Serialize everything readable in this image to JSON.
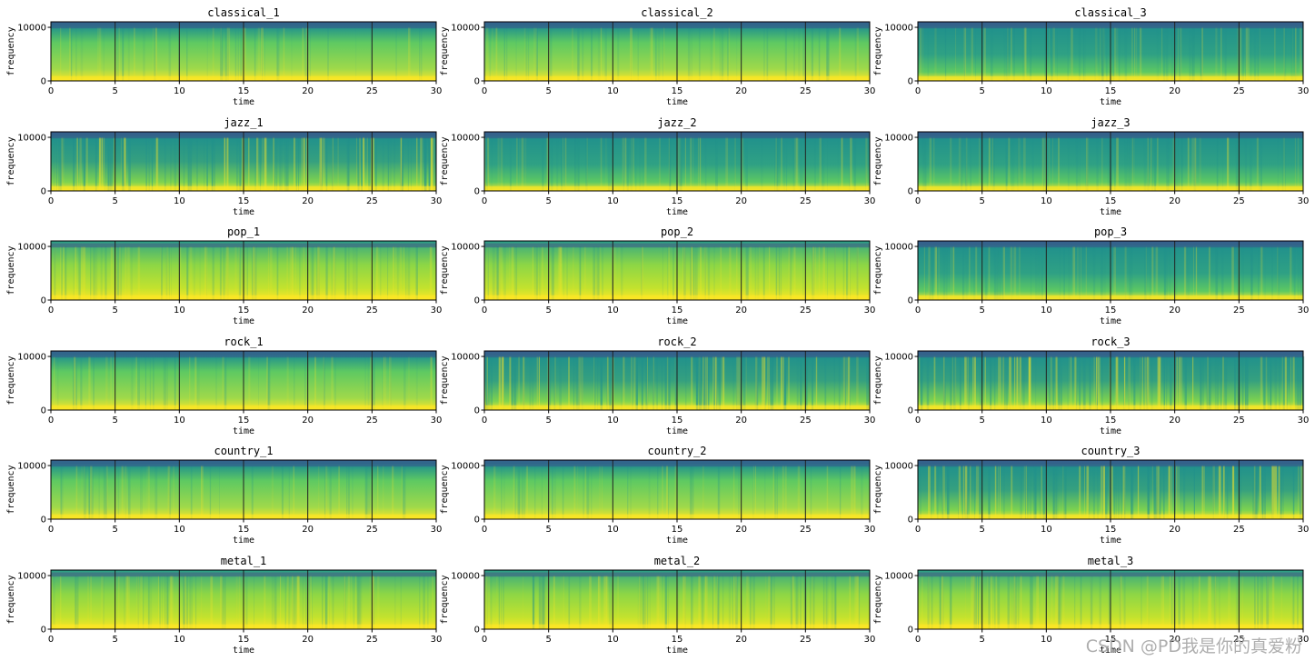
{
  "watermark": "CSDN @PD我是你的真爱粉",
  "colors": {
    "low": "#fde725",
    "mid": "#5ec962",
    "high": "#21918c",
    "top": "#3b528b"
  },
  "chart_data": [
    {
      "type": "heatmap",
      "title": "classical_1",
      "xlabel": "time",
      "ylabel": "frequency",
      "xlim": [
        0,
        30
      ],
      "ylim": [
        0,
        11025
      ],
      "xticks": [
        0,
        5,
        10,
        15,
        20,
        25,
        30
      ],
      "yticks": [
        0,
        10000
      ],
      "vlines": [
        5,
        10,
        15,
        20,
        25
      ],
      "texture": "smooth"
    },
    {
      "type": "heatmap",
      "title": "classical_2",
      "xlabel": "time",
      "ylabel": "frequency",
      "xlim": [
        0,
        30
      ],
      "ylim": [
        0,
        11025
      ],
      "xticks": [
        0,
        5,
        10,
        15,
        20,
        25,
        30
      ],
      "yticks": [
        0,
        10000
      ],
      "vlines": [
        5,
        10,
        15,
        20,
        25
      ],
      "texture": "smooth"
    },
    {
      "type": "heatmap",
      "title": "classical_3",
      "xlabel": "time",
      "ylabel": "frequency",
      "xlim": [
        0,
        30
      ],
      "ylim": [
        0,
        11025
      ],
      "xticks": [
        0,
        5,
        10,
        15,
        20,
        25,
        30
      ],
      "yticks": [
        0,
        10000
      ],
      "vlines": [
        5,
        10,
        15,
        20,
        25
      ],
      "texture": "dark"
    },
    {
      "type": "heatmap",
      "title": "jazz_1",
      "xlabel": "time",
      "ylabel": "frequency",
      "xlim": [
        0,
        30
      ],
      "ylim": [
        0,
        11025
      ],
      "xticks": [
        0,
        5,
        10,
        15,
        20,
        25,
        30
      ],
      "yticks": [
        0,
        10000
      ],
      "vlines": [
        5,
        10,
        15,
        20,
        25
      ],
      "texture": "striped"
    },
    {
      "type": "heatmap",
      "title": "jazz_2",
      "xlabel": "time",
      "ylabel": "frequency",
      "xlim": [
        0,
        30
      ],
      "ylim": [
        0,
        11025
      ],
      "xticks": [
        0,
        5,
        10,
        15,
        20,
        25,
        30
      ],
      "yticks": [
        0,
        10000
      ],
      "vlines": [
        5,
        10,
        15,
        20,
        25
      ],
      "texture": "dark"
    },
    {
      "type": "heatmap",
      "title": "jazz_3",
      "xlabel": "time",
      "ylabel": "frequency",
      "xlim": [
        0,
        30
      ],
      "ylim": [
        0,
        11025
      ],
      "xticks": [
        0,
        5,
        10,
        15,
        20,
        25,
        30
      ],
      "yticks": [
        0,
        10000
      ],
      "vlines": [
        5,
        10,
        15,
        20,
        25
      ],
      "texture": "dark"
    },
    {
      "type": "heatmap",
      "title": "pop_1",
      "xlabel": "time",
      "ylabel": "frequency",
      "xlim": [
        0,
        30
      ],
      "ylim": [
        0,
        11025
      ],
      "xticks": [
        0,
        5,
        10,
        15,
        20,
        25,
        30
      ],
      "yticks": [
        0,
        10000
      ],
      "vlines": [
        5,
        10,
        15,
        20,
        25
      ],
      "texture": "bright"
    },
    {
      "type": "heatmap",
      "title": "pop_2",
      "xlabel": "time",
      "ylabel": "frequency",
      "xlim": [
        0,
        30
      ],
      "ylim": [
        0,
        11025
      ],
      "xticks": [
        0,
        5,
        10,
        15,
        20,
        25,
        30
      ],
      "yticks": [
        0,
        10000
      ],
      "vlines": [
        5,
        10,
        15,
        20,
        25
      ],
      "texture": "bright"
    },
    {
      "type": "heatmap",
      "title": "pop_3",
      "xlabel": "time",
      "ylabel": "frequency",
      "xlim": [
        0,
        30
      ],
      "ylim": [
        0,
        11025
      ],
      "xticks": [
        0,
        5,
        10,
        15,
        20,
        25,
        30
      ],
      "yticks": [
        0,
        10000
      ],
      "vlines": [
        5,
        10,
        15,
        20,
        25
      ],
      "texture": "dark"
    },
    {
      "type": "heatmap",
      "title": "rock_1",
      "xlabel": "time",
      "ylabel": "frequency",
      "xlim": [
        0,
        30
      ],
      "ylim": [
        0,
        11025
      ],
      "xticks": [
        0,
        5,
        10,
        15,
        20,
        25,
        30
      ],
      "yticks": [
        0,
        10000
      ],
      "vlines": [
        5,
        10,
        15,
        20,
        25
      ],
      "texture": "smooth"
    },
    {
      "type": "heatmap",
      "title": "rock_2",
      "xlabel": "time",
      "ylabel": "frequency",
      "xlim": [
        0,
        30
      ],
      "ylim": [
        0,
        11025
      ],
      "xticks": [
        0,
        5,
        10,
        15,
        20,
        25,
        30
      ],
      "yticks": [
        0,
        10000
      ],
      "vlines": [
        5,
        10,
        15,
        20,
        25
      ],
      "texture": "striped"
    },
    {
      "type": "heatmap",
      "title": "rock_3",
      "xlabel": "time",
      "ylabel": "frequency",
      "xlim": [
        0,
        30
      ],
      "ylim": [
        0,
        11025
      ],
      "xticks": [
        0,
        5,
        10,
        15,
        20,
        25,
        30
      ],
      "yticks": [
        0,
        10000
      ],
      "vlines": [
        5,
        10,
        15,
        20,
        25
      ],
      "texture": "striped"
    },
    {
      "type": "heatmap",
      "title": "country_1",
      "xlabel": "time",
      "ylabel": "frequency",
      "xlim": [
        0,
        30
      ],
      "ylim": [
        0,
        11025
      ],
      "xticks": [
        0,
        5,
        10,
        15,
        20,
        25,
        30
      ],
      "yticks": [
        0,
        10000
      ],
      "vlines": [
        5,
        10,
        15,
        20,
        25
      ],
      "texture": "smooth"
    },
    {
      "type": "heatmap",
      "title": "country_2",
      "xlabel": "time",
      "ylabel": "frequency",
      "xlim": [
        0,
        30
      ],
      "ylim": [
        0,
        11025
      ],
      "xticks": [
        0,
        5,
        10,
        15,
        20,
        25,
        30
      ],
      "yticks": [
        0,
        10000
      ],
      "vlines": [
        5,
        10,
        15,
        20,
        25
      ],
      "texture": "smooth"
    },
    {
      "type": "heatmap",
      "title": "country_3",
      "xlabel": "time",
      "ylabel": "frequency",
      "xlim": [
        0,
        30
      ],
      "ylim": [
        0,
        11025
      ],
      "xticks": [
        0,
        5,
        10,
        15,
        20,
        25,
        30
      ],
      "yticks": [
        0,
        10000
      ],
      "vlines": [
        5,
        10,
        15,
        20,
        25
      ],
      "texture": "striped"
    },
    {
      "type": "heatmap",
      "title": "metal_1",
      "xlabel": "time",
      "ylabel": "frequency",
      "xlim": [
        0,
        30
      ],
      "ylim": [
        0,
        11025
      ],
      "xticks": [
        0,
        5,
        10,
        15,
        20,
        25,
        30
      ],
      "yticks": [
        0,
        10000
      ],
      "vlines": [
        5,
        10,
        15,
        20,
        25
      ],
      "texture": "bright"
    },
    {
      "type": "heatmap",
      "title": "metal_2",
      "xlabel": "time",
      "ylabel": "frequency",
      "xlim": [
        0,
        30
      ],
      "ylim": [
        0,
        11025
      ],
      "xticks": [
        0,
        5,
        10,
        15,
        20,
        25,
        30
      ],
      "yticks": [
        0,
        10000
      ],
      "vlines": [
        5,
        10,
        15,
        20,
        25
      ],
      "texture": "bright"
    },
    {
      "type": "heatmap",
      "title": "metal_3",
      "xlabel": "time",
      "ylabel": "frequency",
      "xlim": [
        0,
        30
      ],
      "ylim": [
        0,
        11025
      ],
      "xticks": [
        0,
        5,
        10,
        15,
        20,
        25,
        30
      ],
      "yticks": [
        0,
        10000
      ],
      "vlines": [
        5,
        10,
        15,
        20,
        25
      ],
      "texture": "bright"
    }
  ]
}
